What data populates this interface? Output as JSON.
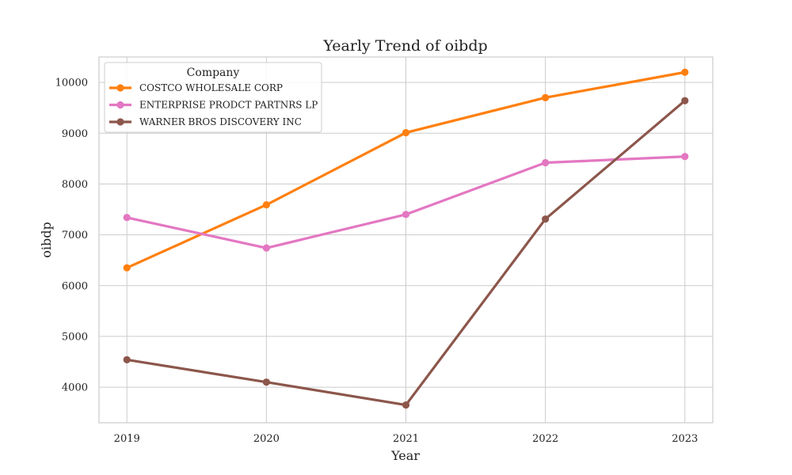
{
  "chart_data": {
    "type": "line",
    "title": "Yearly Trend of oibdp",
    "xlabel": "Year",
    "ylabel": "oibdp",
    "x": [
      2019,
      2020,
      2021,
      2022,
      2023
    ],
    "xticks": [
      "2019",
      "2020",
      "2021",
      "2022",
      "2023"
    ],
    "yticks": [
      4000,
      5000,
      6000,
      7000,
      8000,
      9000,
      10000
    ],
    "ylim": [
      3300,
      10500
    ],
    "xlim": [
      2018.8,
      2023.2
    ],
    "grid": true,
    "legend": {
      "title": "Company",
      "placement": "top-left"
    },
    "series": [
      {
        "name": "COSTCO WHOLESALE CORP",
        "color": "#ff7f0e",
        "values": [
          6350,
          7590,
          9010,
          9700,
          10200
        ]
      },
      {
        "name": "ENTERPRISE PRODCT PARTNRS LP",
        "color": "#e377c2",
        "values": [
          7340,
          6740,
          7400,
          8420,
          8540
        ]
      },
      {
        "name": "WARNER BROS DISCOVERY INC",
        "color": "#8c564b",
        "values": [
          4540,
          4100,
          3650,
          7310,
          9640
        ]
      }
    ]
  }
}
